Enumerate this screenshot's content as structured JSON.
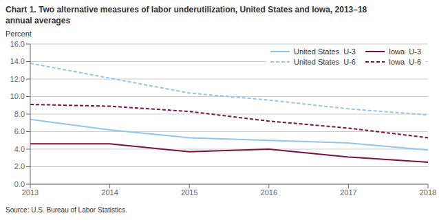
{
  "chart_data": {
    "type": "line",
    "title": "Chart 1. Two alternative measures of labor underutilization, United States and Iowa, 2013–18",
    "subtitle": "annual averages",
    "y_label": "Percent",
    "annotations": [
      "Source: U.S. Bureau of Labor Statistics."
    ],
    "x": [
      2013,
      2014,
      2015,
      2016,
      2017,
      2018
    ],
    "series": [
      {
        "name": "United States  U-3",
        "color": "#92C5E8",
        "line_style": "solid",
        "values": [
          7.4,
          6.2,
          5.3,
          5.0,
          4.7,
          3.9
        ]
      },
      {
        "name": "United States  U-6",
        "color": "#92C5E8",
        "line_style": "dashed",
        "values": [
          13.8,
          12.1,
          10.4,
          9.6,
          8.6,
          7.9
        ]
      },
      {
        "name": "Iowa  U-3",
        "color": "#7B1040",
        "line_style": "solid",
        "values": [
          4.6,
          4.6,
          3.7,
          4.0,
          3.1,
          2.5
        ]
      },
      {
        "name": "Iowa  U-6",
        "color": "#7B1040",
        "line_style": "dashed",
        "values": [
          9.1,
          8.9,
          8.3,
          7.2,
          6.4,
          5.3
        ]
      }
    ],
    "xlim": [
      2013,
      2018
    ],
    "xticks": [
      2013,
      2014,
      2015,
      2016,
      2017,
      2018
    ],
    "ylim": [
      0,
      16
    ],
    "yticks": [
      {
        "value": 0,
        "label": "0.0"
      },
      {
        "value": 2,
        "label": "2.0"
      },
      {
        "value": 4,
        "label": "4.0"
      },
      {
        "value": 6,
        "label": "6.0"
      },
      {
        "value": 8,
        "label": "8.0"
      },
      {
        "value": 10,
        "label": "10.0"
      },
      {
        "value": 12,
        "label": "12.0"
      },
      {
        "value": 14,
        "label": "14.0"
      },
      {
        "value": 16,
        "label": "16.0"
      }
    ],
    "grid": "y",
    "legend": "upper right"
  }
}
